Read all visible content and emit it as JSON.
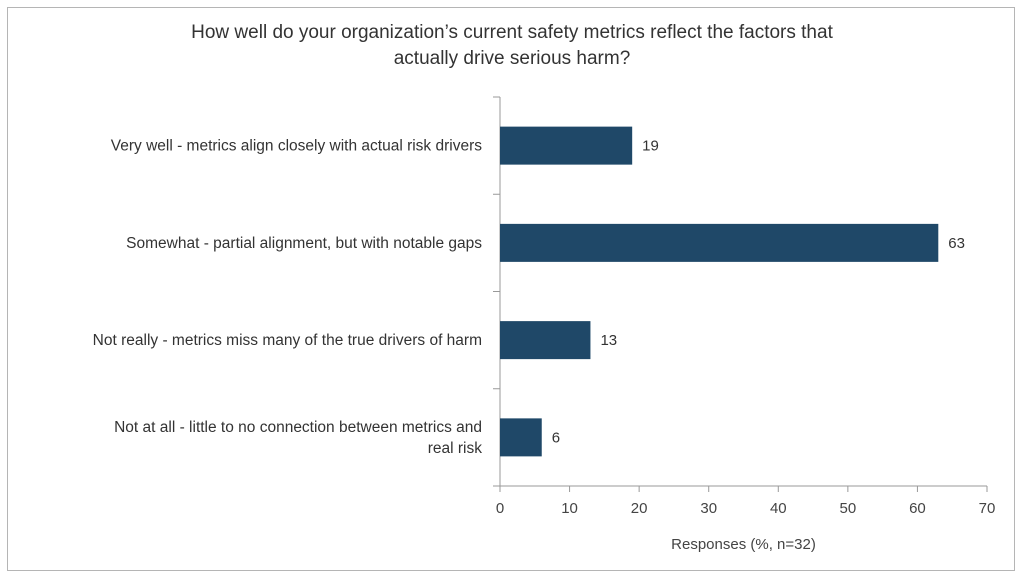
{
  "chart_data": {
    "type": "bar",
    "orientation": "horizontal",
    "title_lines": [
      "How well do your organization’s current safety metrics reflect the factors that",
      "actually drive serious harm?"
    ],
    "categories": [
      [
        "Very well - metrics align closely with actual risk drivers"
      ],
      [
        "Somewhat - partial alignment, but with notable gaps"
      ],
      [
        "Not really - metrics miss many of the true drivers of harm"
      ],
      [
        "Not at all - little to no connection between metrics and",
        "real risk"
      ]
    ],
    "values": [
      19,
      63,
      13,
      6
    ],
    "data_labels": [
      "19",
      "63",
      "13",
      "6"
    ],
    "xlabel": "Responses (%, n=32)",
    "xlim": [
      0,
      70
    ],
    "xticks": [
      "0",
      "10",
      "20",
      "30",
      "40",
      "50",
      "60",
      "70"
    ],
    "grid": false,
    "bar_color": "#1f4868"
  }
}
